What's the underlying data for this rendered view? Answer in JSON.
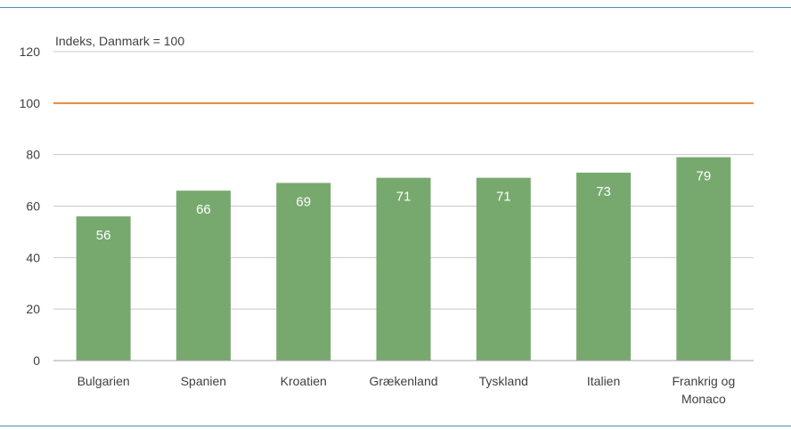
{
  "colors": {
    "bar": "#77a96f",
    "reference_line": "#e8843c",
    "frame": "#4a90b8",
    "grid": "#c8c8c8",
    "axis": "#a0a0a0",
    "text": "#404040",
    "bar_label": "#ffffff"
  },
  "chart_data": {
    "type": "bar",
    "title": "",
    "ylabel": "Indeks, Danmark = 100",
    "xlabel": "",
    "ylim": [
      0,
      120
    ],
    "yticks": [
      0,
      20,
      40,
      60,
      80,
      100,
      120
    ],
    "reference_line": 100,
    "categories": [
      [
        "Bulgarien"
      ],
      [
        "Spanien"
      ],
      [
        "Kroatien"
      ],
      [
        "Grækenland"
      ],
      [
        "Tyskland"
      ],
      [
        "Italien"
      ],
      [
        "Frankrig og",
        "Monaco"
      ]
    ],
    "values": [
      56,
      66,
      69,
      71,
      71,
      73,
      79
    ],
    "data_labels": [
      "56",
      "66",
      "69",
      "71",
      "71",
      "73",
      "79"
    ],
    "grid": true,
    "legend": "none"
  }
}
